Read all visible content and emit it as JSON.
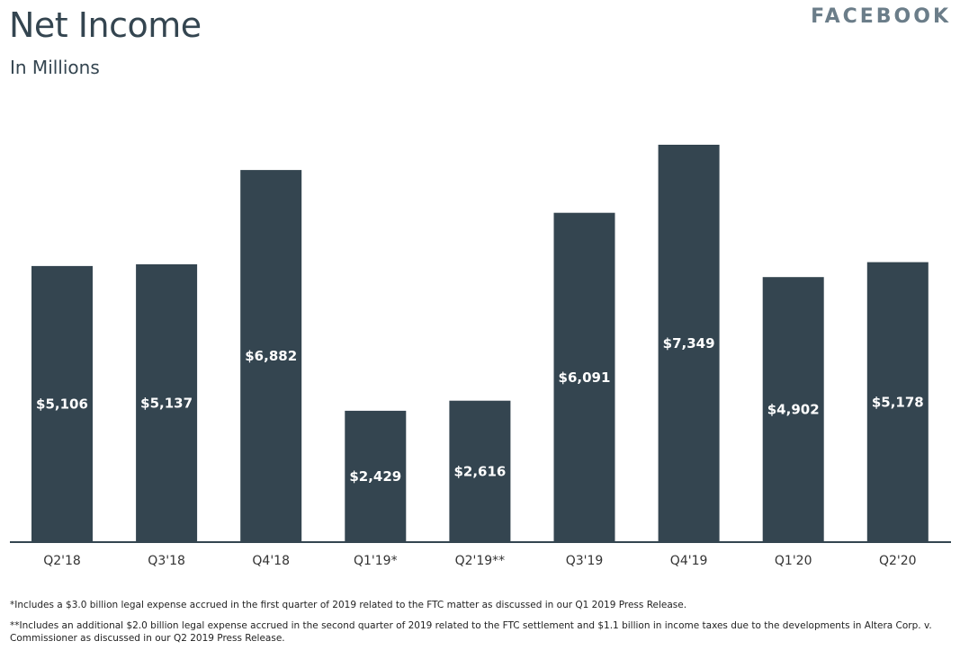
{
  "header": {
    "title": "Net Income",
    "subtitle": "In Millions",
    "brand": "FACEBOOK"
  },
  "chart_data": {
    "type": "bar",
    "title": "Net Income",
    "subtitle": "In Millions",
    "categories": [
      "Q2'18",
      "Q3'18",
      "Q4'18",
      "Q1'19*",
      "Q2'19**",
      "Q3'19",
      "Q4'19",
      "Q1'20",
      "Q2'20"
    ],
    "values": [
      5106,
      5137,
      6882,
      2429,
      2616,
      6091,
      7349,
      4902,
      5178
    ],
    "value_labels": [
      "$5,106",
      "$5,137",
      "$6,882",
      "$2,429",
      "$2,616",
      "$6,091",
      "$7,349",
      "$4,902",
      "$5,178"
    ],
    "ylim": [
      0,
      7349
    ],
    "bar_color": "#344550",
    "label_color": "#ffffff",
    "grid": false
  },
  "footnotes": {
    "fn1": "*Includes a $3.0 billion legal expense accrued in the first quarter of 2019 related to the FTC matter as discussed in our Q1 2019 Press Release.",
    "fn2": "**Includes an additional $2.0 billion legal expense accrued in the second quarter of 2019 related to the FTC settlement and $1.1 billion in income taxes due to the developments in Altera Corp. v. Commissioner as discussed in our Q2 2019 Press Release."
  }
}
